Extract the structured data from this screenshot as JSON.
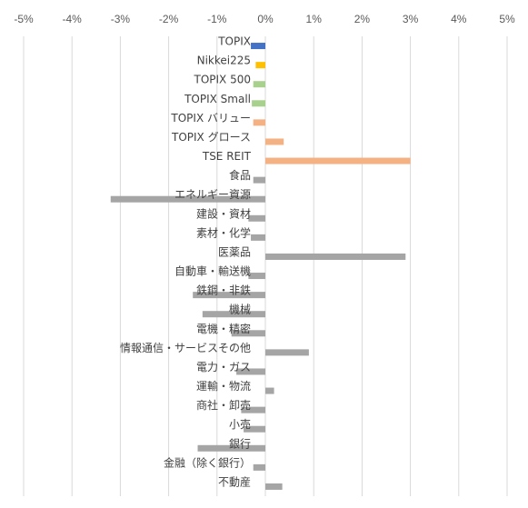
{
  "chart_data": {
    "type": "bar",
    "orientation": "horizontal",
    "xlim": [
      -5,
      5
    ],
    "x_ticks": [
      -5,
      -4,
      -3,
      -2,
      -1,
      0,
      1,
      2,
      3,
      4,
      5
    ],
    "tick_suffix": "%",
    "grid": true,
    "categories": [
      "TOPIX",
      "Nikkei225",
      "TOPIX 500",
      "TOPIX Small",
      "TOPIX バリュー",
      "TOPIX グロース",
      "TSE REIT",
      "食品",
      "エネルギー資源",
      "建設・資材",
      "素材・化学",
      "医薬品",
      "自動車・輸送機",
      "鉄鋼・非鉄",
      "機械",
      "電機・精密",
      "情報通信・サービスその他",
      "電力・ガス",
      "運輸・物流",
      "商社・卸売",
      "小売",
      "銀行",
      "金融（除く銀行）",
      "不動産"
    ],
    "values": [
      -0.3,
      -0.2,
      -0.25,
      -0.28,
      -0.25,
      0.38,
      3.0,
      -0.25,
      -3.2,
      -0.35,
      -0.3,
      2.9,
      -0.35,
      -1.5,
      -1.3,
      -0.7,
      0.9,
      -0.6,
      0.18,
      -0.5,
      -0.45,
      -1.4,
      -0.25,
      0.35
    ],
    "colors": [
      "#4472c4",
      "#ffc000",
      "#a9d18e",
      "#a9d18e",
      "#f4b183",
      "#f4b183",
      "#f4b183",
      "#a5a5a5",
      "#a5a5a5",
      "#a5a5a5",
      "#a5a5a5",
      "#a5a5a5",
      "#a5a5a5",
      "#a5a5a5",
      "#a5a5a5",
      "#a5a5a5",
      "#a5a5a5",
      "#a5a5a5",
      "#a5a5a5",
      "#a5a5a5",
      "#a5a5a5",
      "#a5a5a5",
      "#a5a5a5",
      "#a5a5a5"
    ],
    "title": "",
    "xlabel": "",
    "ylabel": ""
  }
}
